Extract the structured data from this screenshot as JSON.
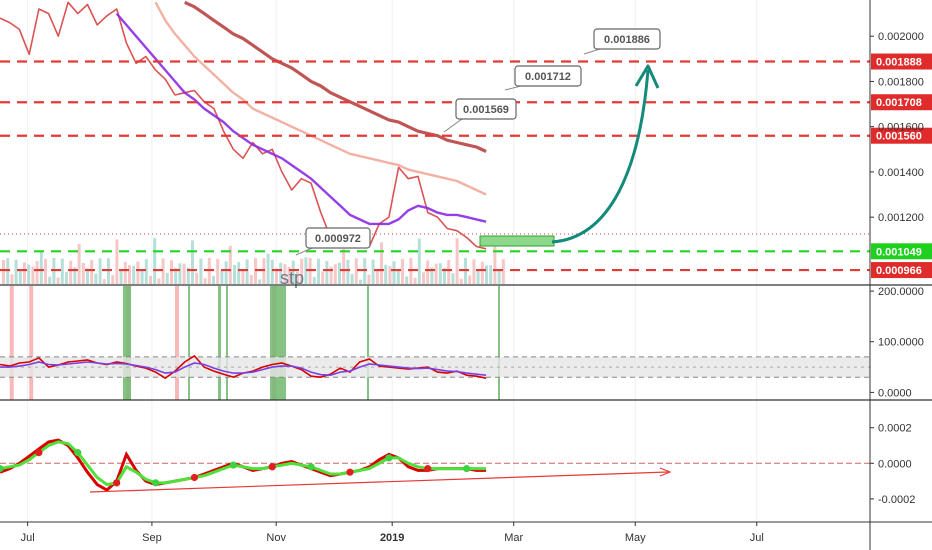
{
  "chart_data": {
    "type": "line",
    "main_panel": {
      "ylim": [
        0.0009,
        0.00216
      ],
      "y_ticks": [
        "0.002000",
        "0.001800",
        "0.001600",
        "0.001400",
        "0.001200"
      ],
      "y_tick_values": [
        0.002,
        0.0018,
        0.0016,
        0.0014,
        0.0012
      ],
      "horizontal_levels": [
        {
          "label": "0.001888",
          "value": 0.001888,
          "color": "#e53935",
          "style": "dashed"
        },
        {
          "label": "0.001708",
          "value": 0.001708,
          "color": "#e53935",
          "style": "dashed"
        },
        {
          "label": "0.001560",
          "value": 0.00156,
          "color": "#e53935",
          "style": "dashed"
        },
        {
          "label": "0.001049",
          "value": 0.001049,
          "color": "#22d622",
          "style": "dashed"
        },
        {
          "label": "0.000966",
          "value": 0.000966,
          "color": "#e53935",
          "style": "dashed"
        }
      ],
      "callouts": [
        {
          "label": "0.001886"
        },
        {
          "label": "0.001712"
        },
        {
          "label": "0.001569"
        },
        {
          "label": "0.000972"
        }
      ],
      "watermark": "stp",
      "series": [
        {
          "key": "price",
          "color": "#d94a4a",
          "values": [
            0.00208,
            0.00206,
            0.00203,
            0.00192,
            0.00212,
            0.0021,
            0.002,
            0.00215,
            0.0021,
            0.00214,
            0.00205,
            0.00209,
            0.00212,
            0.00197,
            0.00188,
            0.00191,
            0.00185,
            0.00181,
            0.00174,
            0.00175,
            0.00176,
            0.00171,
            0.00168,
            0.00158,
            0.0015,
            0.00146,
            0.00153,
            0.00148,
            0.0015,
            0.0014,
            0.00132,
            0.00137,
            0.00135,
            0.00122,
            0.00111,
            0.00108,
            0.00115,
            0.00112,
            0.00107,
            0.00117,
            0.0012,
            0.00142,
            0.00137,
            0.00138,
            0.00122,
            0.0012,
            0.00115,
            0.00114,
            0.00111,
            0.00107,
            0.00106
          ]
        },
        {
          "key": "ma-purple",
          "color": "#8a2be2",
          "values": [
            null,
            null,
            null,
            null,
            null,
            null,
            null,
            null,
            null,
            null,
            null,
            null,
            0.0021,
            0.00205,
            0.002,
            0.00195,
            0.0019,
            0.00185,
            0.0018,
            0.00175,
            0.00172,
            0.00168,
            0.00165,
            0.00162,
            0.00158,
            0.00155,
            0.00152,
            0.0015,
            0.00148,
            0.00146,
            0.00143,
            0.0014,
            0.00137,
            0.00133,
            0.00129,
            0.00125,
            0.00121,
            0.00119,
            0.00117,
            0.00117,
            0.00117,
            0.00119,
            0.00123,
            0.00125,
            0.00124,
            0.00122,
            0.00121,
            0.00121,
            0.0012,
            0.00119,
            0.00118
          ]
        },
        {
          "key": "ma-salmon",
          "color": "#f2a89a",
          "values": [
            null,
            null,
            null,
            null,
            null,
            null,
            null,
            null,
            null,
            null,
            null,
            null,
            null,
            null,
            null,
            null,
            0.00215,
            0.00207,
            0.00201,
            0.00196,
            0.00191,
            0.00187,
            0.00183,
            0.00179,
            0.00175,
            0.00172,
            0.00168,
            0.00166,
            0.00164,
            0.00162,
            0.0016,
            0.00158,
            0.00156,
            0.00154,
            0.00152,
            0.0015,
            0.00148,
            0.00147,
            0.00146,
            0.00145,
            0.00144,
            0.00143,
            0.00141,
            0.0014,
            0.00139,
            0.00138,
            0.00137,
            0.00136,
            0.00134,
            0.00132,
            0.0013
          ]
        },
        {
          "key": "ma-darkred",
          "color": "#b84343",
          "values": [
            null,
            null,
            null,
            null,
            null,
            null,
            null,
            null,
            null,
            null,
            null,
            null,
            null,
            null,
            null,
            null,
            null,
            null,
            null,
            0.00215,
            0.00213,
            0.0021,
            0.00207,
            0.00204,
            0.00201,
            0.00199,
            0.00196,
            0.00193,
            0.0019,
            0.00188,
            0.00186,
            0.00183,
            0.0018,
            0.00178,
            0.00175,
            0.00173,
            0.00171,
            0.00169,
            0.00167,
            0.00165,
            0.00163,
            0.00162,
            0.0016,
            0.00158,
            0.00157,
            0.00156,
            0.00154,
            0.00153,
            0.00152,
            0.00151,
            0.00149
          ]
        }
      ]
    },
    "rsi_panel": {
      "ylim": [
        -15,
        210
      ],
      "y_ticks": [
        "200.0000",
        "100.0000",
        "0.0000"
      ],
      "y_tick_values": [
        200,
        100,
        0
      ],
      "band": [
        30,
        70
      ],
      "series": [
        {
          "key": "rsi-red",
          "color": "#d80000",
          "values": [
            55,
            52,
            58,
            60,
            68,
            50,
            54,
            60,
            62,
            64,
            58,
            55,
            60,
            57,
            52,
            48,
            40,
            28,
            42,
            60,
            72,
            50,
            42,
            36,
            30,
            38,
            42,
            50,
            55,
            58,
            52,
            45,
            32,
            30,
            36,
            48,
            40,
            60,
            66,
            52,
            50,
            48,
            46,
            48,
            50,
            40,
            38,
            42,
            34,
            32,
            28
          ]
        },
        {
          "key": "rsi-purple",
          "color": "#7b3fe4",
          "values": [
            50,
            50,
            52,
            55,
            60,
            55,
            54,
            56,
            58,
            60,
            58,
            56,
            57,
            56,
            53,
            50,
            45,
            38,
            40,
            50,
            58,
            55,
            48,
            42,
            38,
            38,
            40,
            45,
            50,
            52,
            52,
            48,
            40,
            35,
            34,
            40,
            42,
            50,
            56,
            54,
            52,
            50,
            48,
            47,
            48,
            45,
            42,
            41,
            38,
            36,
            34
          ]
        }
      ]
    },
    "oscillator_panel": {
      "ylim": [
        -0.00033,
        0.00035
      ],
      "y_ticks": [
        "0.0002",
        "0.0000",
        "-0.0002"
      ],
      "y_tick_values": [
        0.0002,
        0.0,
        -0.0002
      ],
      "series": [
        {
          "key": "osc-fast",
          "color": "#d80000",
          "values": [
            -5e-05,
            -3e-05,
            0.0,
            4e-05,
            8e-05,
            0.00012,
            0.00013,
            0.0001,
            3e-05,
            -5e-05,
            -0.00012,
            -0.00015,
            -0.0001,
            5e-05,
            -4e-05,
            -0.0001,
            -0.00012,
            -0.00011,
            -0.0001,
            -9e-05,
            -8e-05,
            -6e-05,
            -4e-05,
            -2e-05,
            0.0,
            -2e-05,
            -4e-05,
            -3e-05,
            -2e-05,
            0.0,
            1e-05,
            -1e-05,
            -3e-05,
            -5e-05,
            -7e-05,
            -6e-05,
            -5e-05,
            -4e-05,
            -2e-05,
            2e-05,
            5e-05,
            3e-05,
            -2e-05,
            -4e-05,
            -4e-05,
            -3e-05,
            -3e-05,
            -3e-05,
            -3e-05,
            -4e-05,
            -4e-05
          ]
        },
        {
          "key": "osc-slow",
          "color": "#4fe13a",
          "values": [
            -3e-05,
            -2e-05,
            -1e-05,
            2e-05,
            6e-05,
            0.0001,
            0.00012,
            0.00011,
            6e-05,
            -1e-05,
            -8e-05,
            -0.00012,
            -0.00011,
            -2e-05,
            -5e-05,
            -9e-05,
            -0.00011,
            -0.00011,
            -0.0001,
            -9e-05,
            -8e-05,
            -7e-05,
            -5e-05,
            -3e-05,
            -1e-05,
            -2e-05,
            -3e-05,
            -3e-05,
            -2e-05,
            -1e-05,
            0.0,
            -1e-05,
            -2e-05,
            -4e-05,
            -6e-05,
            -6e-05,
            -5e-05,
            -4e-05,
            -3e-05,
            0.0,
            3e-05,
            3e-05,
            0.0,
            -2e-05,
            -3e-05,
            -3e-05,
            -3e-05,
            -3e-05,
            -3e-05,
            -3e-05,
            -3e-05
          ]
        }
      ]
    },
    "x_axis": {
      "tick_labels": [
        "Jul",
        "Sep",
        "Nov",
        "2019",
        "Mar",
        "May",
        "Jul"
      ],
      "tick_positions": [
        1.0,
        5.5,
        10.0,
        14.2,
        18.6,
        23.0,
        27.4
      ],
      "range": [
        0,
        31.5
      ]
    },
    "highlight_colors": {
      "red_bar": "#f4a6a6",
      "green_bar": "#6fb86f"
    }
  }
}
